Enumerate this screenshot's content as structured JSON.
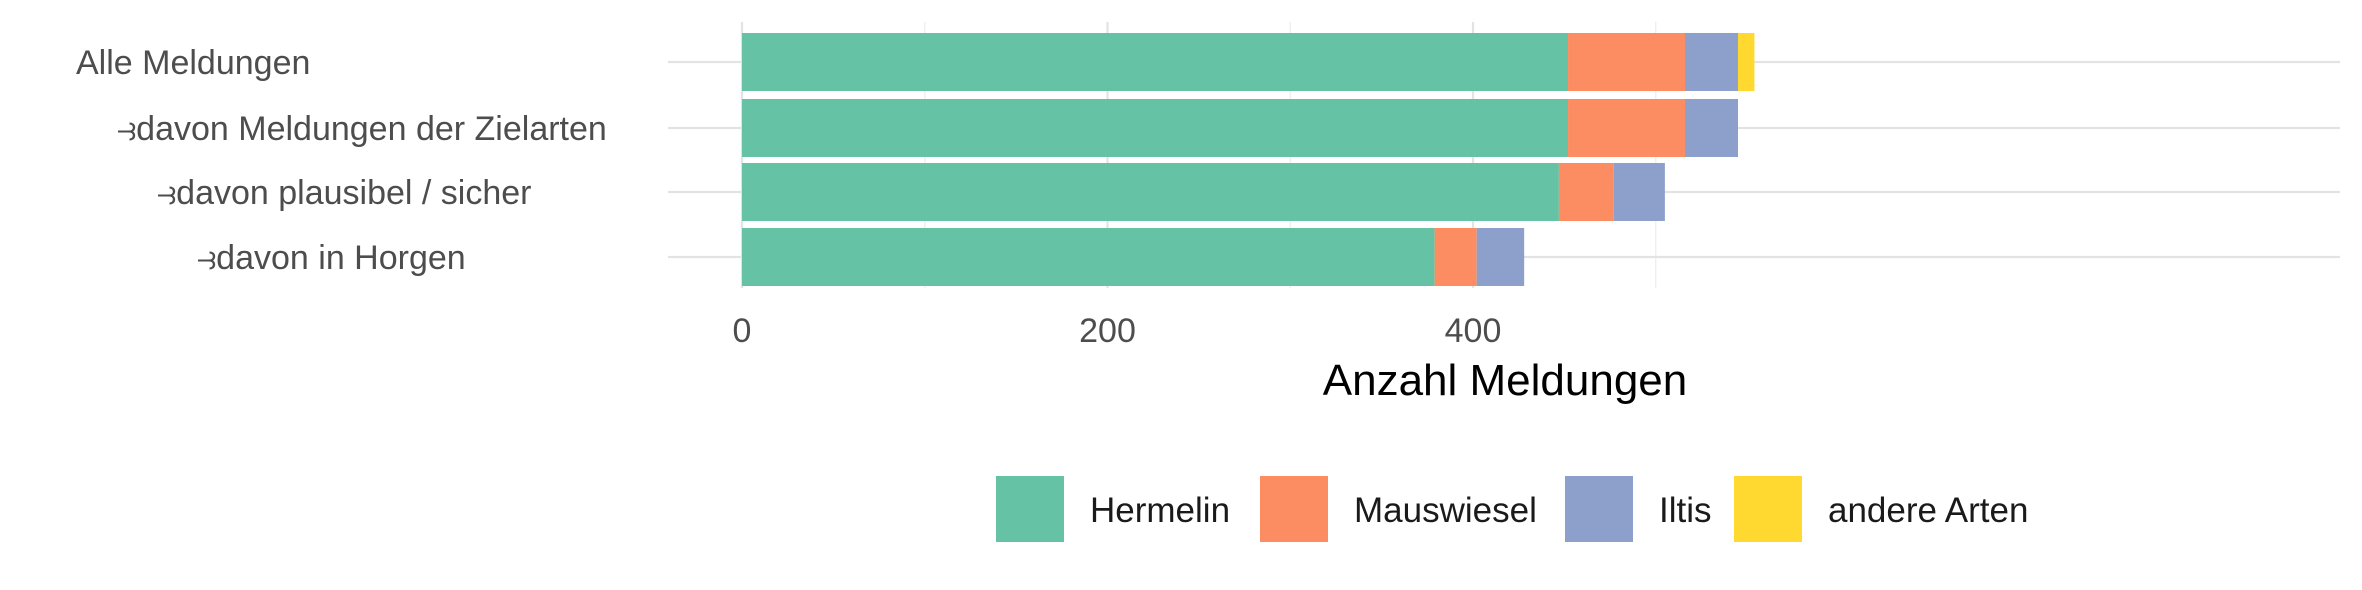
{
  "chart_data": {
    "type": "bar",
    "orientation": "horizontal",
    "stacked": true,
    "categories": [
      "Alle Meldungen",
      "⥽davon Meldungen der Zielarten",
      "⥽davon plausibel / sicher",
      "⥽davon in Horgen"
    ],
    "series": [
      {
        "name": "Hermelin",
        "color": "#66c2a5",
        "values": [
          452,
          452,
          447,
          379
        ]
      },
      {
        "name": "Mauswiesel",
        "color": "#fc8d62",
        "values": [
          64,
          64,
          30,
          23
        ]
      },
      {
        "name": "Iltis",
        "color": "#8da0cb",
        "values": [
          29,
          29,
          28,
          26
        ]
      },
      {
        "name": "andere Arten",
        "color": "#ffd92f",
        "values": [
          9,
          0,
          0,
          0
        ]
      }
    ],
    "xlabel": "Anzahl Meldungen",
    "ylabel": "",
    "xlim": [
      0,
      580
    ],
    "xticks": [
      0,
      200,
      400
    ],
    "grid": true,
    "legend_position": "bottom"
  }
}
